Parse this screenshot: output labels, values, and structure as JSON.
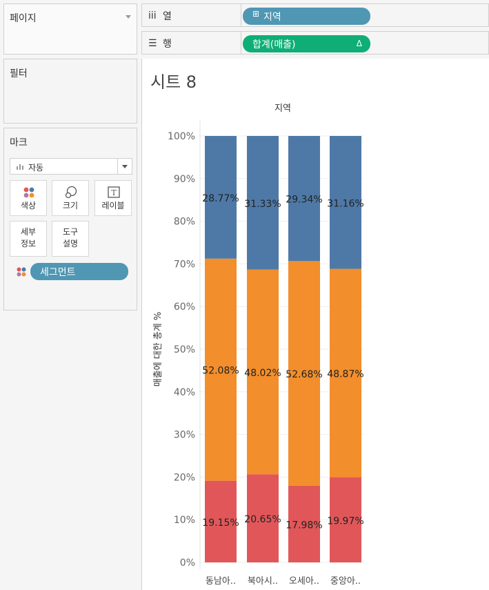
{
  "pages": {
    "title": "페이지"
  },
  "filters": {
    "title": "필터"
  },
  "marks": {
    "title": "마크",
    "mark_type": "자동",
    "buttons": {
      "color": "색상",
      "size": "크기",
      "label": "레이블",
      "detail_line1": "세부",
      "detail_line2": "정보",
      "tooltip_line1": "도구",
      "tooltip_line2": "설명"
    },
    "color_field": "세그먼트"
  },
  "columns_shelf": {
    "icon": "iii",
    "label": "열",
    "pill_icon": "⊞",
    "pill": "지역"
  },
  "rows_shelf": {
    "icon": "☰",
    "label": "행",
    "pill": "합계(매출)",
    "pill_delta": "Δ"
  },
  "sheet": {
    "title": "시트 8"
  },
  "colors": {
    "series_top": "#4e79a7",
    "series_mid": "#f28e2b",
    "series_bottom": "#e15759"
  },
  "chart_data": {
    "type": "bar",
    "stacked": true,
    "header": "지역",
    "ylabel": "매출에 대한 총계 %",
    "ylim": [
      0,
      100
    ],
    "yticks": [
      "0%",
      "10%",
      "20%",
      "30%",
      "40%",
      "50%",
      "60%",
      "70%",
      "80%",
      "90%",
      "100%"
    ],
    "categories": [
      "동남아..",
      "북아시..",
      "오세아..",
      "중앙아.."
    ],
    "series": [
      {
        "values": [
          19.15,
          20.65,
          17.98,
          19.97
        ],
        "labels": [
          "19.15%",
          "20.65%",
          "17.98%",
          "19.97%"
        ],
        "color": "#e15759"
      },
      {
        "values": [
          52.08,
          48.02,
          52.68,
          48.87
        ],
        "labels": [
          "52.08%",
          "48.02%",
          "52.68%",
          "48.87%"
        ],
        "color": "#f28e2b"
      },
      {
        "values": [
          28.77,
          31.33,
          29.34,
          31.16
        ],
        "labels": [
          "28.77%",
          "31.33%",
          "29.34%",
          "31.16%"
        ],
        "color": "#4e79a7"
      }
    ]
  }
}
